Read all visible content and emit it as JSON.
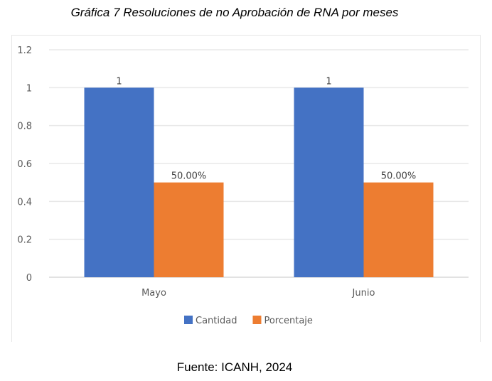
{
  "caption": "Gráfica 7 Resoluciones de no Aprobación de RNA por meses",
  "source": "Fuente: ICANH, 2024",
  "chart_data": {
    "type": "bar",
    "title": "",
    "xlabel": "",
    "ylabel": "",
    "categories": [
      "Mayo",
      "Junio"
    ],
    "series": [
      {
        "name": "Cantidad",
        "values": [
          1,
          1
        ],
        "labels": [
          "1",
          "1"
        ],
        "color": "#4472C4"
      },
      {
        "name": "Porcentaje",
        "values": [
          0.5,
          0.5
        ],
        "labels": [
          "50.00%",
          "50.00%"
        ],
        "color": "#ED7D31"
      }
    ],
    "ylim": [
      0,
      1.2
    ],
    "yticks": [
      "0",
      "0.2",
      "0.4",
      "0.6",
      "0.8",
      "1",
      "1.2"
    ],
    "grid": true,
    "legend": "bottom"
  }
}
